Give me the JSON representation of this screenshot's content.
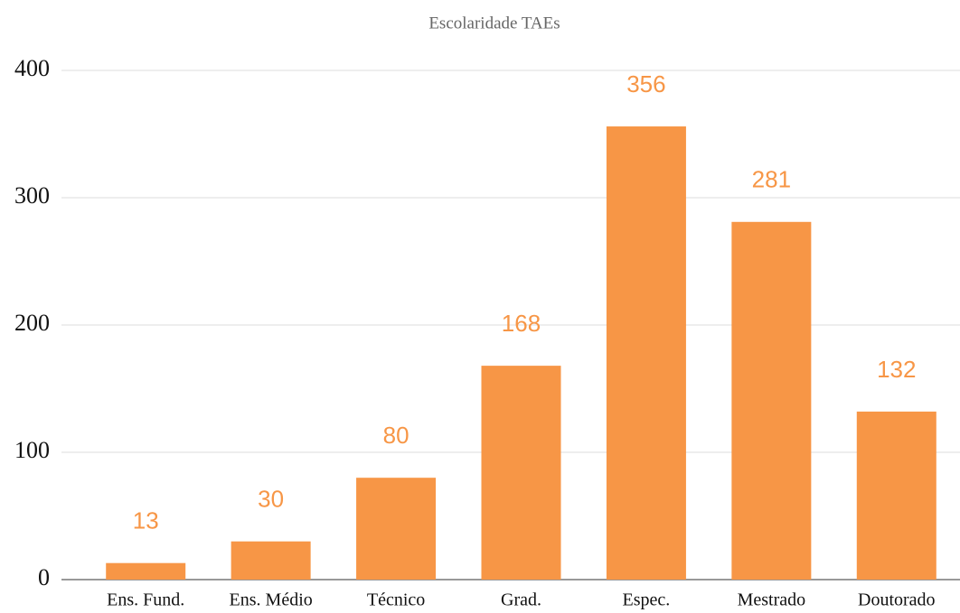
{
  "chart_data": {
    "type": "bar",
    "title": "Escolaridade TAEs",
    "categories": [
      "Ens. Fund.",
      "Ens. Médio",
      "Técnico",
      "Grad.",
      "Espec.",
      "Mestrado",
      "Doutorado"
    ],
    "values": [
      13,
      30,
      80,
      168,
      356,
      281,
      132
    ],
    "color": "#f79646",
    "ylim": [
      0,
      400
    ],
    "yticks": [
      0,
      100,
      200,
      300,
      400
    ],
    "grid": true
  }
}
